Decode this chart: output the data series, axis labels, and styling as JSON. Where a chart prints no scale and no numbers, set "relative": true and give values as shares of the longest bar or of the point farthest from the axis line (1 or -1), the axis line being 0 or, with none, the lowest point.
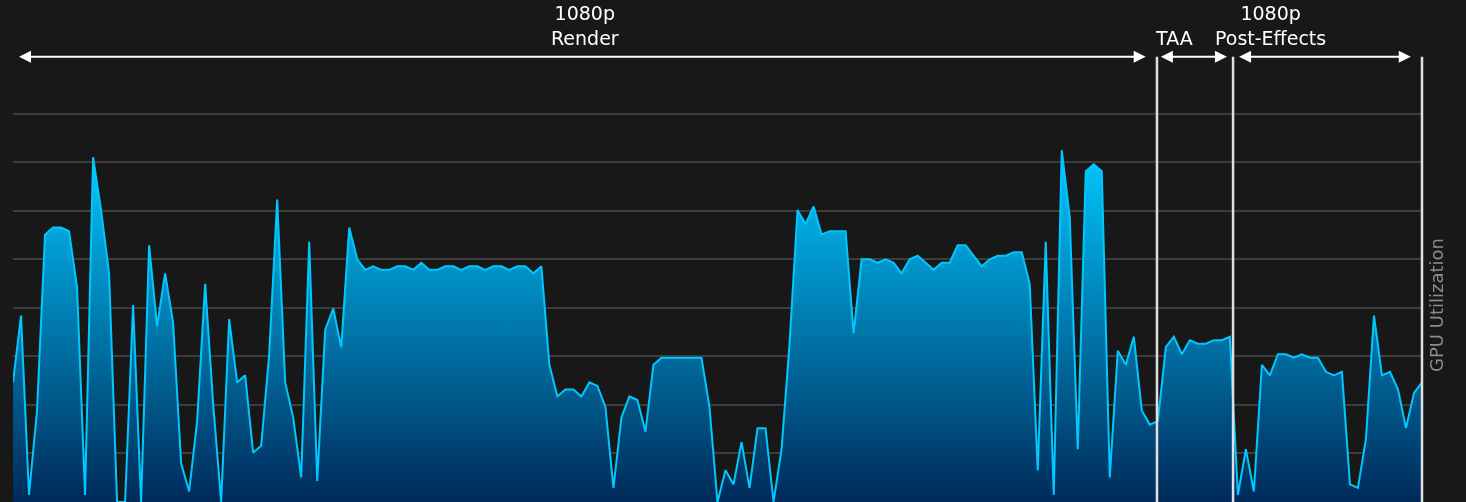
{
  "chart_data": {
    "type": "area",
    "relative": true,
    "ylabel": "GPU Utilization",
    "grid": "y",
    "tick_labels": false,
    "annotations": [
      "1080p\nRender",
      "TAA",
      "1080p\nPost-Effects"
    ],
    "categories": [
      null,
      null,
      null,
      null,
      null,
      null,
      null,
      null,
      null,
      null,
      null,
      null,
      null,
      null,
      null,
      null,
      null,
      null,
      null,
      null,
      null,
      null,
      null,
      null,
      null,
      null,
      null,
      null,
      null,
      null,
      null,
      null,
      null,
      null,
      null,
      null,
      null,
      null,
      null,
      null,
      null,
      null,
      null,
      null,
      null,
      null,
      null,
      null,
      null,
      null,
      null,
      null,
      null,
      null,
      null,
      null,
      null,
      null,
      null,
      null,
      null,
      null,
      null,
      null,
      null,
      null,
      null,
      null,
      null,
      null,
      null,
      null,
      null,
      null,
      null,
      null,
      null,
      null,
      null,
      null,
      null,
      null,
      null,
      null,
      null,
      null,
      null,
      null,
      null,
      null,
      null,
      null,
      null,
      null,
      null,
      null,
      null,
      null,
      null,
      null,
      null,
      null,
      null,
      null,
      null,
      null,
      null,
      null,
      null,
      null,
      null,
      null,
      null,
      null,
      null,
      null,
      null,
      null,
      null,
      null,
      null,
      null,
      null,
      null,
      null,
      null,
      null,
      null,
      null,
      null,
      null,
      null,
      null,
      null,
      null,
      null,
      null,
      null,
      null,
      null,
      null,
      null,
      null,
      null,
      null,
      null,
      null,
      null,
      null,
      null,
      null,
      null,
      null,
      null,
      null,
      null,
      null,
      null,
      null,
      null,
      null,
      null,
      null,
      null,
      null,
      null,
      null,
      null,
      null,
      null,
      null,
      null,
      null,
      null,
      null,
      null,
      null
    ],
    "series": [
      {
        "color": "#00c8ff",
        "values": [
          0.34,
          0.53,
          0.02,
          0.26,
          0.76,
          0.78,
          0.78,
          0.77,
          0.61,
          0.02,
          0.98,
          0.83,
          0.65,
          0,
          0,
          0.56,
          0,
          0.73,
          0.5,
          0.65,
          0.51,
          0.11,
          0.03,
          0.23,
          0.62,
          0.28,
          0,
          0.52,
          0.34,
          0.36,
          0.14,
          0.16,
          0.42,
          0.86,
          0.34,
          0.24,
          0.07,
          0.74,
          0.06,
          0.49,
          0.55,
          0.44,
          0.78,
          0.69,
          0.66,
          0.67,
          0.66,
          0.66,
          0.67,
          0.67,
          0.66,
          0.68,
          0.66,
          0.66,
          0.67,
          0.67,
          0.66,
          0.67,
          0.67,
          0.66,
          0.67,
          0.67,
          0.66,
          0.67,
          0.67,
          0.65,
          0.67,
          0.39,
          0.3,
          0.32,
          0.32,
          0.3,
          0.34,
          0.33,
          0.27,
          0.04,
          0.24,
          0.3,
          0.29,
          0.2,
          0.39,
          0.41,
          0.41,
          0.41,
          0.41,
          0.41,
          0.41,
          0.27,
          0,
          0.09,
          0.05,
          0.17,
          0.04,
          0.21,
          0.21,
          0,
          0.15,
          0.45,
          0.83,
          0.79,
          0.84,
          0.76,
          0.77,
          0.77,
          0.77,
          0.48,
          0.69,
          0.69,
          0.68,
          0.69,
          0.68,
          0.65,
          0.69,
          0.7,
          0.68,
          0.66,
          0.68,
          0.68,
          0.73,
          0.73,
          0.7,
          0.67,
          0.69,
          0.7,
          0.7,
          0.71,
          0.71,
          0.62,
          0.09,
          0.74,
          0.02,
          1,
          0.81,
          0.15,
          0.94,
          0.96,
          0.94,
          0.07,
          0.43,
          0.39,
          0.47,
          0.26,
          0.22,
          0.23,
          0.44,
          0.47,
          0.42,
          0.46,
          0.45,
          0.45,
          0.46,
          0.46,
          0.47,
          0.02,
          0.15,
          0.03,
          0.39,
          0.36,
          0.42,
          0.42,
          0.41,
          0.42,
          0.41,
          0.41,
          0.37,
          0.36,
          0.37,
          0.05,
          0.04,
          0.18,
          0.53,
          0.36,
          0.37,
          0.32,
          0.21,
          0.31,
          0.34
        ]
      }
    ]
  }
}
